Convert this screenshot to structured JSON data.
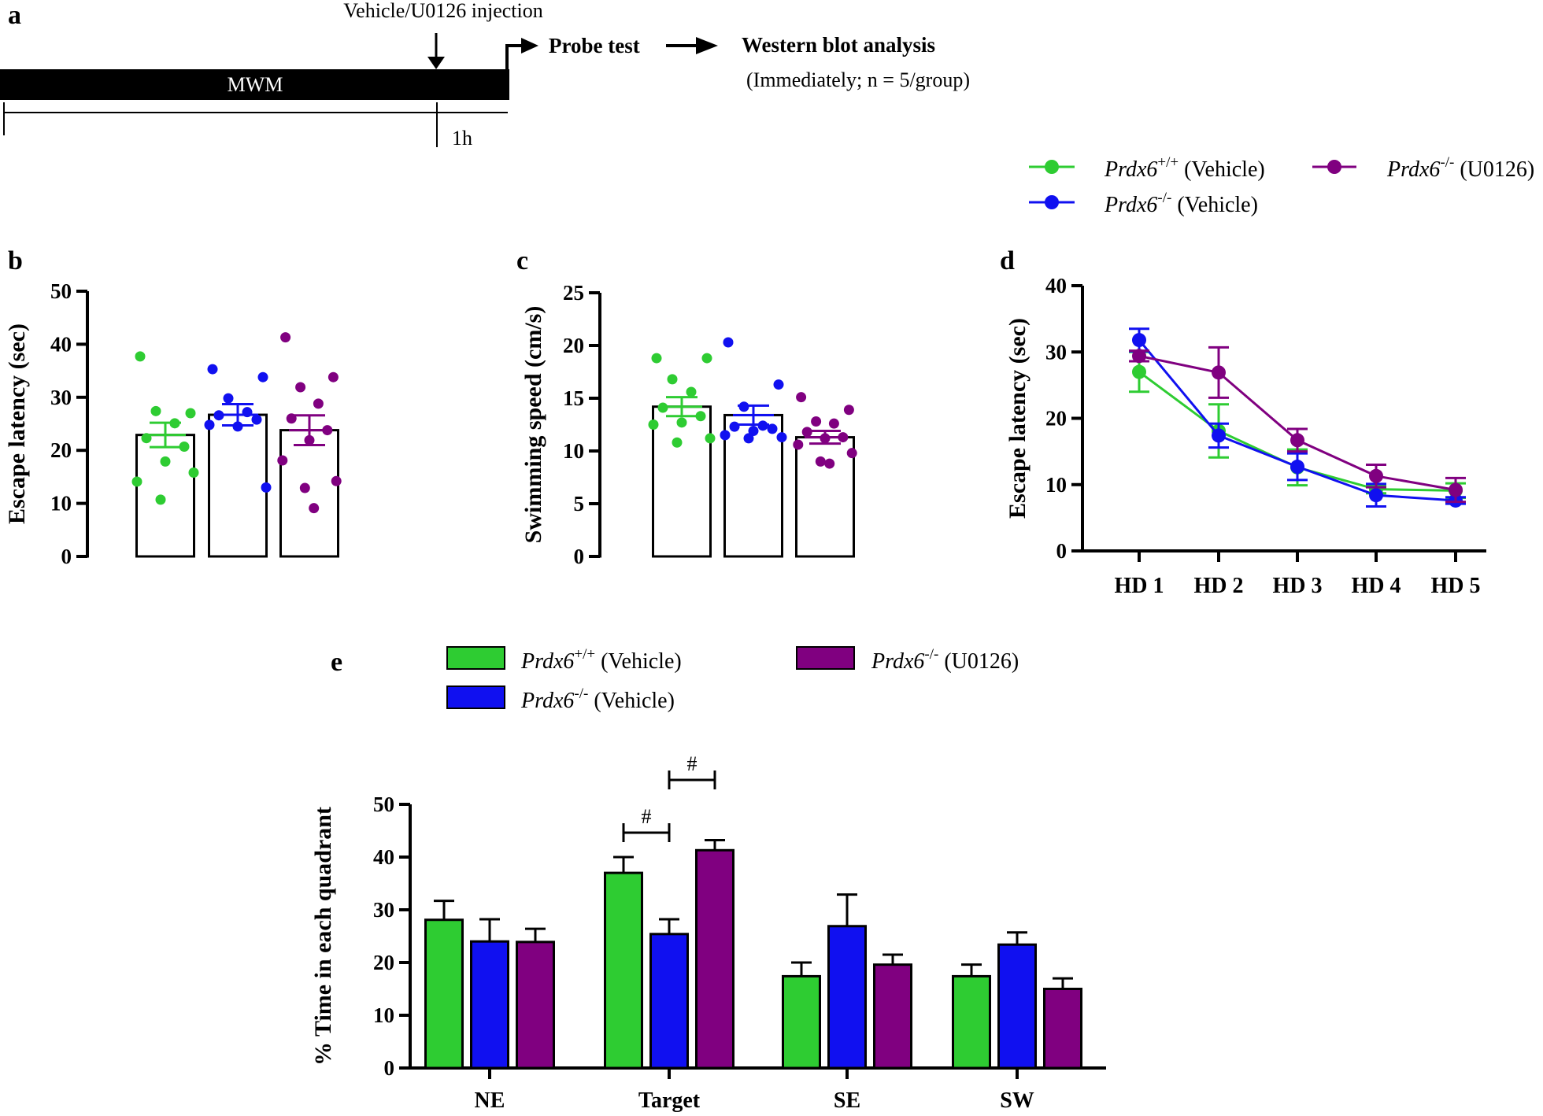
{
  "colors": {
    "wt": "#2ecc32",
    "ko": "#1010f0",
    "u0126": "#800080",
    "ink": "#000000"
  },
  "panel_labels": {
    "a": "a",
    "b": "b",
    "c": "c",
    "d": "d",
    "e": "e"
  },
  "timeline": {
    "mwm_label": "MWM",
    "injection_label": "Vehicle/U0126 injection",
    "interval_label": "1h",
    "probe_label": "Probe test",
    "western_label": "Western blot analysis",
    "western_note": "(Immediately; n = 5/group)"
  },
  "legend": {
    "wt": {
      "gene": "Prdx6",
      "sup": "+/+",
      "treat": " (Vehicle)"
    },
    "ko": {
      "gene": "Prdx6",
      "sup": "-/-",
      "treat": " (Vehicle)"
    },
    "u0126": {
      "gene": "Prdx6",
      "sup": "-/-",
      "treat": " (U0126)"
    }
  },
  "chart_data": [
    {
      "id": "b",
      "type": "bar",
      "ylabel": "Escape latency (sec)",
      "ylim": [
        0,
        50
      ],
      "yticks": [
        0,
        10,
        20,
        30,
        40,
        50
      ],
      "series": [
        {
          "name": "Prdx6+/+ (Vehicle)",
          "color": "#2ecc32",
          "mean": 22.9,
          "sem": 2.3,
          "points": [
            37.7,
            27.0,
            27.4,
            25.1,
            22.3,
            20.7,
            17.9,
            14.1,
            15.8,
            10.7
          ]
        },
        {
          "name": "Prdx6-/- (Vehicle)",
          "color": "#1010f0",
          "mean": 26.7,
          "sem": 2.0,
          "points": [
            35.3,
            33.8,
            29.8,
            27.2,
            26.6,
            25.8,
            24.5,
            24.8,
            13.0
          ]
        },
        {
          "name": "Prdx6-/- (U0126)",
          "color": "#800080",
          "mean": 23.8,
          "sem": 2.8,
          "points": [
            41.3,
            33.8,
            31.9,
            28.8,
            26.0,
            23.8,
            21.9,
            18.1,
            14.2,
            12.9,
            9.1
          ]
        }
      ]
    },
    {
      "id": "c",
      "type": "bar",
      "ylabel": "Swimming speed (cm/s)",
      "ylim": [
        0,
        25
      ],
      "yticks": [
        0,
        5,
        10,
        15,
        20,
        25
      ],
      "series": [
        {
          "name": "Prdx6+/+ (Vehicle)",
          "color": "#2ecc32",
          "mean": 14.2,
          "sem": 0.9,
          "points": [
            18.8,
            18.8,
            16.8,
            15.6,
            14.1,
            13.3,
            12.7,
            12.5,
            11.2,
            10.8
          ]
        },
        {
          "name": "Prdx6-/- (Vehicle)",
          "color": "#1010f0",
          "mean": 13.4,
          "sem": 0.9,
          "points": [
            20.3,
            16.3,
            14.2,
            12.4,
            12.3,
            12.1,
            11.9,
            11.5,
            11.3,
            11.2
          ]
        },
        {
          "name": "Prdx6-/- (U0126)",
          "color": "#800080",
          "mean": 11.3,
          "sem": 0.6,
          "points": [
            15.1,
            13.9,
            12.8,
            12.6,
            11.8,
            11.3,
            11.2,
            10.6,
            9.8,
            9.0,
            8.8
          ]
        }
      ]
    },
    {
      "id": "d",
      "type": "line",
      "ylabel": "Escape latency (sec)",
      "ylim": [
        0,
        40
      ],
      "yticks": [
        0,
        10,
        20,
        30,
        40
      ],
      "categories": [
        "HD 1",
        "HD 2",
        "HD 3",
        "HD 4",
        "HD 5"
      ],
      "series": [
        {
          "name": "Prdx6+/+ (Vehicle)",
          "color": "#2ecc32",
          "values": [
            27.0,
            18.1,
            12.6,
            9.3,
            9.1
          ],
          "sem": [
            3.0,
            4.0,
            2.7,
            0.6,
            1.1
          ]
        },
        {
          "name": "Prdx6-/- (Vehicle)",
          "color": "#1010f0",
          "values": [
            31.8,
            17.4,
            12.7,
            8.4,
            7.6
          ],
          "sem": [
            1.7,
            1.8,
            2.0,
            1.7,
            0.5
          ]
        },
        {
          "name": "Prdx6-/- (U0126)",
          "color": "#800080",
          "values": [
            29.4,
            26.9,
            16.7,
            11.3,
            9.2
          ],
          "sem": [
            0.8,
            3.8,
            1.7,
            1.7,
            1.8
          ]
        }
      ]
    },
    {
      "id": "e",
      "type": "bar",
      "ylabel": "% Time in each quadrant",
      "ylim": [
        0,
        50
      ],
      "yticks": [
        0,
        10,
        20,
        30,
        40,
        50
      ],
      "categories": [
        "NE",
        "Target",
        "SE",
        "SW"
      ],
      "series": [
        {
          "name": "Prdx6+/+ (Vehicle)",
          "color": "#2ecc32",
          "values": [
            28.1,
            37.0,
            17.4,
            17.4
          ],
          "sem": [
            3.6,
            3.0,
            2.6,
            2.2
          ]
        },
        {
          "name": "Prdx6-/- (Vehicle)",
          "color": "#1010f0",
          "values": [
            24.0,
            25.4,
            26.9,
            23.4
          ],
          "sem": [
            4.2,
            2.8,
            6.0,
            2.3
          ]
        },
        {
          "name": "Prdx6-/- (U0126)",
          "color": "#800080",
          "values": [
            23.9,
            41.3,
            19.6,
            15.0
          ],
          "sem": [
            2.5,
            1.9,
            1.9,
            2.0
          ]
        }
      ],
      "annotations": [
        {
          "label": "#",
          "category": "Target",
          "from": 0,
          "to": 1
        },
        {
          "label": "#",
          "category": "Target",
          "from": 1,
          "to": 2
        }
      ]
    }
  ]
}
